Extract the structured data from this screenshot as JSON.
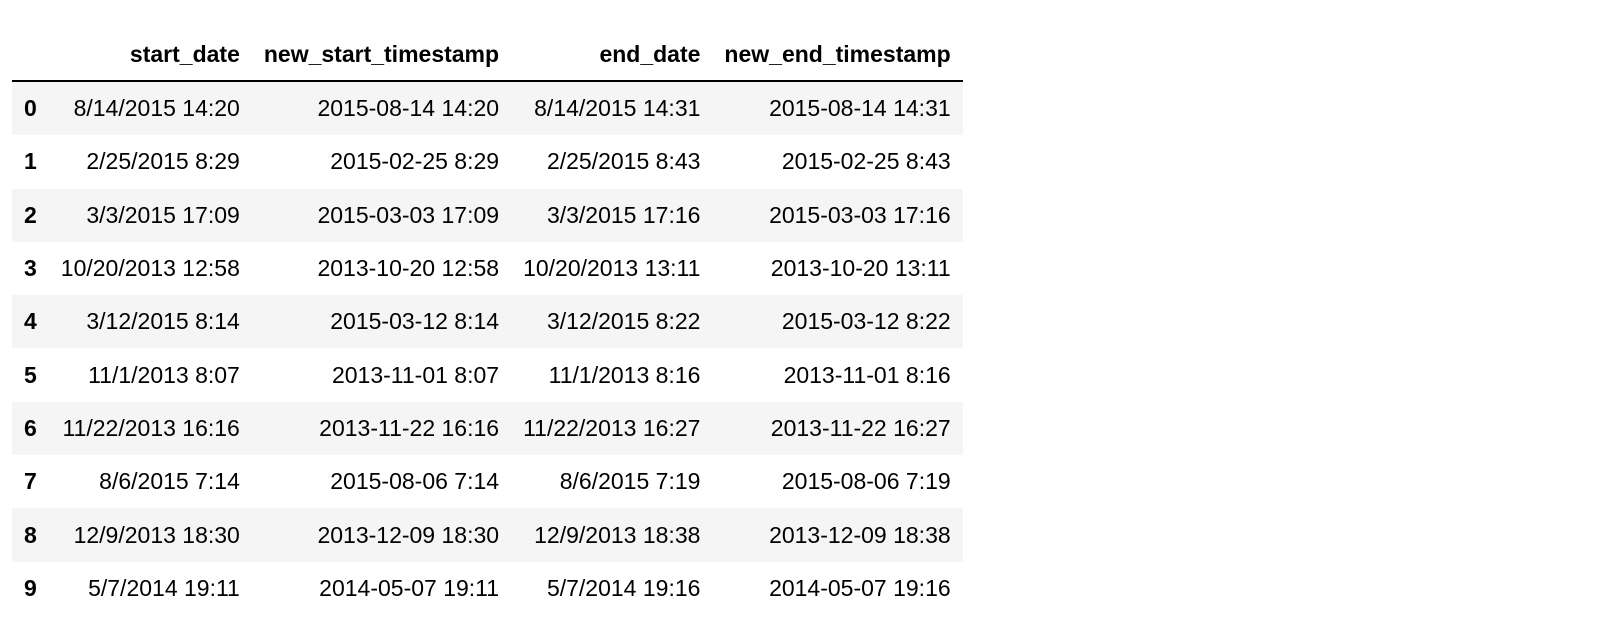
{
  "table": {
    "columns": [
      "",
      "start_date",
      "new_start_timestamp",
      "end_date",
      "new_end_timestamp"
    ],
    "rows": [
      {
        "index": "0",
        "cells": [
          "8/14/2015 14:20",
          "2015-08-14 14:20",
          "8/14/2015 14:31",
          "2015-08-14 14:31"
        ]
      },
      {
        "index": "1",
        "cells": [
          "2/25/2015 8:29",
          "2015-02-25 8:29",
          "2/25/2015 8:43",
          "2015-02-25 8:43"
        ]
      },
      {
        "index": "2",
        "cells": [
          "3/3/2015 17:09",
          "2015-03-03 17:09",
          "3/3/2015 17:16",
          "2015-03-03 17:16"
        ]
      },
      {
        "index": "3",
        "cells": [
          "10/20/2013 12:58",
          "2013-10-20 12:58",
          "10/20/2013 13:11",
          "2013-10-20 13:11"
        ]
      },
      {
        "index": "4",
        "cells": [
          "3/12/2015 8:14",
          "2015-03-12 8:14",
          "3/12/2015 8:22",
          "2015-03-12 8:22"
        ]
      },
      {
        "index": "5",
        "cells": [
          "11/1/2013 8:07",
          "2013-11-01 8:07",
          "11/1/2013 8:16",
          "2013-11-01 8:16"
        ]
      },
      {
        "index": "6",
        "cells": [
          "11/22/2013 16:16",
          "2013-11-22 16:16",
          "11/22/2013 16:27",
          "2013-11-22 16:27"
        ]
      },
      {
        "index": "7",
        "cells": [
          "8/6/2015 7:14",
          "2015-08-06 7:14",
          "8/6/2015 7:19",
          "2015-08-06 7:19"
        ]
      },
      {
        "index": "8",
        "cells": [
          "12/9/2013 18:30",
          "2013-12-09 18:30",
          "12/9/2013 18:38",
          "2013-12-09 18:38"
        ]
      },
      {
        "index": "9",
        "cells": [
          "5/7/2014 19:11",
          "2014-05-07 19:11",
          "5/7/2014 19:16",
          "2014-05-07 19:16"
        ]
      }
    ]
  }
}
